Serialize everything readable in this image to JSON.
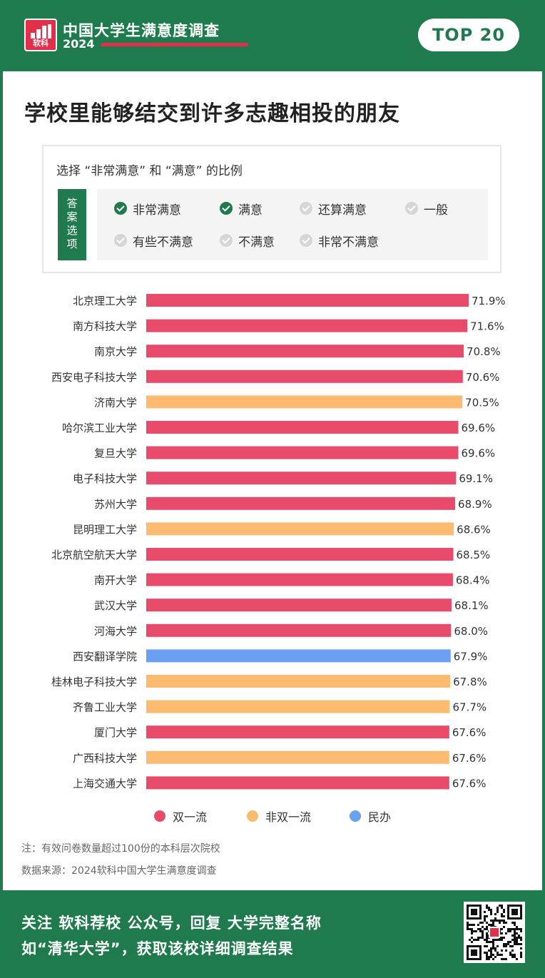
{
  "header": {
    "logo_text": "软科",
    "brand_title": "中国大学生满意度调查",
    "brand_year": "2024",
    "badge": "TOP 20"
  },
  "title": "学校里能够结交到许多志趣相投的朋友",
  "question": {
    "text": "选择 “非常满意” 和 “满意” 的比例",
    "tag": "答案选项",
    "options": [
      {
        "label": "非常满意",
        "checked": true
      },
      {
        "label": "满意",
        "checked": true
      },
      {
        "label": "还算满意",
        "checked": false
      },
      {
        "label": "一般",
        "checked": false
      },
      {
        "label": "有些不满意",
        "checked": false
      },
      {
        "label": "不满意",
        "checked": false
      },
      {
        "label": "非常不满意",
        "checked": false
      }
    ]
  },
  "chart_data": {
    "type": "bar",
    "orientation": "horizontal",
    "categories": [
      "北京理工大学",
      "南方科技大学",
      "南京大学",
      "西安电子科技大学",
      "济南大学",
      "哈尔滨工业大学",
      "复旦大学",
      "电子科技大学",
      "苏州大学",
      "昆明理工大学",
      "北京航空航天大学",
      "南开大学",
      "武汉大学",
      "河海大学",
      "西安翻译学院",
      "桂林电子科技大学",
      "齐鲁工业大学",
      "厦门大学",
      "广西科技大学",
      "上海交通大学"
    ],
    "values": [
      71.9,
      71.6,
      70.8,
      70.6,
      70.5,
      69.6,
      69.6,
      69.1,
      68.9,
      68.6,
      68.5,
      68.4,
      68.1,
      68.0,
      67.9,
      67.8,
      67.7,
      67.6,
      67.6,
      67.6
    ],
    "value_labels": [
      "71.9%",
      "71.6%",
      "70.8%",
      "70.6%",
      "70.5%",
      "69.6%",
      "69.6%",
      "69.1%",
      "68.9%",
      "68.6%",
      "68.5%",
      "68.4%",
      "68.1%",
      "68.0%",
      "67.9%",
      "67.8%",
      "67.7%",
      "67.6%",
      "67.6%",
      "67.6%"
    ],
    "groups": [
      "双一流",
      "双一流",
      "双一流",
      "双一流",
      "非双一流",
      "双一流",
      "双一流",
      "双一流",
      "双一流",
      "非双一流",
      "双一流",
      "双一流",
      "双一流",
      "双一流",
      "民办",
      "非双一流",
      "非双一流",
      "双一流",
      "非双一流",
      "双一流"
    ],
    "legend": [
      {
        "name": "双一流",
        "color": "#e84a69"
      },
      {
        "name": "非双一流",
        "color": "#fdbb72"
      },
      {
        "name": "民办",
        "color": "#6a9ff2"
      }
    ],
    "legend_position": "bottom",
    "grid": false
  },
  "notes": [
    "注：有效问卷数量超过100份的本科层次院校",
    "数据来源：2024软科中国大学生满意度调查"
  ],
  "footer": {
    "line1": "关注 软科荐校 公众号，回复 大学完整名称",
    "line2": "如“清华大学”，获取该校详细调查结果"
  },
  "colors": {
    "brand_green": "#1f7a4d",
    "brand_red": "#e3304a"
  }
}
